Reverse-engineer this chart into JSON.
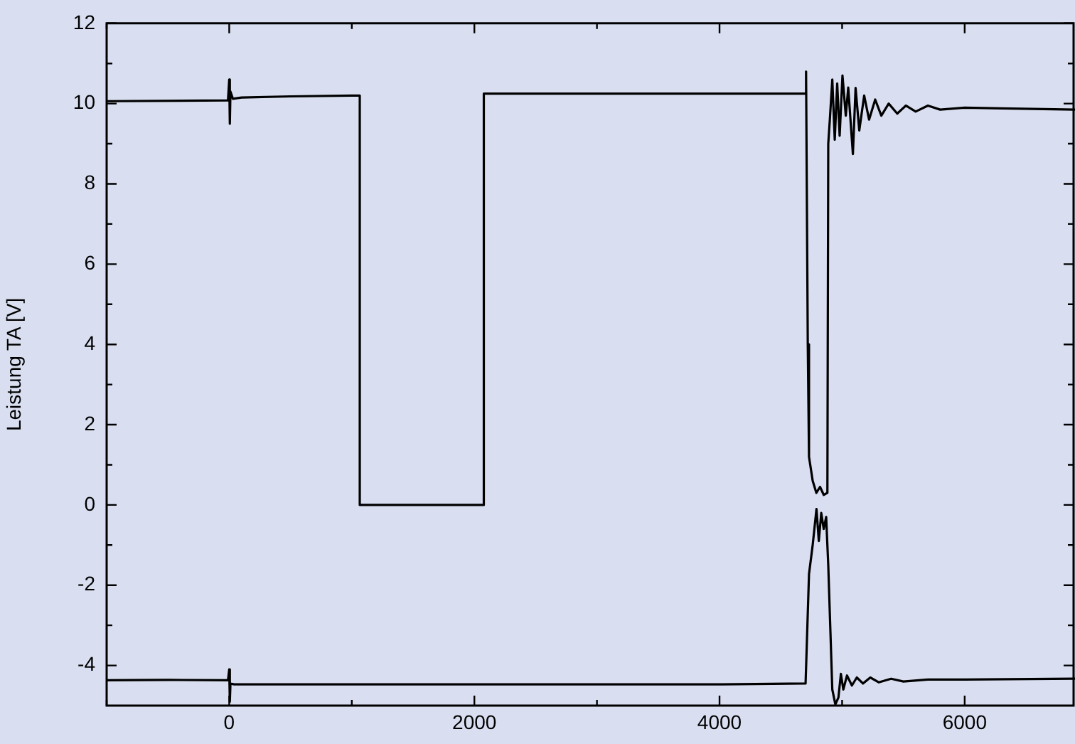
{
  "chart_data": {
    "type": "line",
    "ylabel": "Leistung TA [V]",
    "xlim": [
      -1000,
      6900
    ],
    "ylim": [
      -5,
      12
    ],
    "xticks": [
      {
        "value": -1000,
        "label": null
      },
      0,
      {
        "value": 1000,
        "label": null
      },
      2000,
      {
        "value": 3000,
        "label": null
      },
      4000,
      {
        "value": 5000,
        "label": null
      },
      6000
    ],
    "yticks": [
      -4,
      {
        "value": -3,
        "label": null
      },
      -2,
      {
        "value": -1,
        "label": null
      },
      0,
      {
        "value": 1,
        "label": null
      },
      2,
      {
        "value": 3,
        "label": null
      },
      4,
      {
        "value": 5,
        "label": null
      },
      6,
      {
        "value": 7,
        "label": null
      },
      8,
      {
        "value": 9,
        "label": null
      },
      10,
      {
        "value": 11,
        "label": null
      },
      12
    ],
    "grid": false,
    "legend": false,
    "marker": "none",
    "line_style": "solid",
    "series": [
      {
        "color": "#000000",
        "x": [
          -1000,
          -10,
          0,
          5,
          10,
          30,
          100,
          500,
          1000,
          1065,
          1065,
          2077,
          2077,
          3000,
          4000,
          4700,
          4706,
          4720,
          4730,
          4760,
          4790,
          4820,
          4850,
          4880,
          4887,
          4900,
          4920,
          4940,
          4960,
          4980,
          5003,
          5030,
          5050,
          5088,
          5110,
          5140,
          5180,
          5220,
          5270,
          5320,
          5380,
          5450,
          5520,
          5600,
          5700,
          5800,
          6000,
          6300,
          6900
        ],
        "values": [
          10.06,
          10.08,
          10.6,
          9.5,
          10.3,
          10.12,
          10.15,
          10.18,
          10.2,
          10.2,
          0,
          0,
          10.25,
          10.25,
          10.25,
          10.25,
          10.8,
          4,
          1.2,
          0.6,
          0.3,
          0.45,
          0.25,
          0.3,
          9,
          9.6,
          10.6,
          9.1,
          10.5,
          9.2,
          10.7,
          9.7,
          10.4,
          8.74,
          10.39,
          9.33,
          10.2,
          9.6,
          10.1,
          9.7,
          10.0,
          9.75,
          9.95,
          9.8,
          9.95,
          9.85,
          9.9,
          9.88,
          9.85
        ]
      },
      {
        "color": "#000000",
        "x": [
          -1000,
          -500,
          -10,
          0,
          5,
          10,
          40,
          500,
          1000,
          2000,
          3000,
          4000,
          4702,
          4730,
          4760,
          4791,
          4810,
          4830,
          4850,
          4870,
          4887,
          4920,
          4945,
          4970,
          4990,
          5010,
          5040,
          5080,
          5120,
          5170,
          5230,
          5300,
          5400,
          5500,
          5700,
          6000,
          6900
        ],
        "values": [
          -4.37,
          -4.36,
          -4.37,
          -4.1,
          -4.9,
          -4.45,
          -4.47,
          -4.47,
          -4.47,
          -4.47,
          -4.47,
          -4.47,
          -4.45,
          -1.72,
          -1.0,
          -0.1,
          -0.9,
          -0.2,
          -0.6,
          -0.3,
          -1.5,
          -4.6,
          -4.97,
          -4.8,
          -4.21,
          -4.6,
          -4.25,
          -4.5,
          -4.3,
          -4.45,
          -4.3,
          -4.42,
          -4.33,
          -4.4,
          -4.35,
          -4.35,
          -4.33
        ]
      }
    ]
  }
}
